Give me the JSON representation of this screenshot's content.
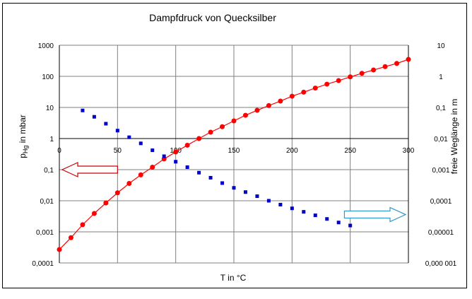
{
  "chart_data": {
    "type": "scatter",
    "title": "Dampfdruck von Quecksilber",
    "xlabel": "T in °C",
    "ylabel_left_sub": "Hg",
    "ylabel_left_prefix": "p",
    "ylabel_left_suffix": " in mbar",
    "ylabel_right": "freie Weglänge in m",
    "xlim": [
      0,
      300
    ],
    "ylim_left": [
      0.0001,
      1000
    ],
    "ylim_right": [
      1e-06,
      10
    ],
    "yscale": "log",
    "grid": true,
    "x_ticks": [
      "0",
      "50",
      "100",
      "150",
      "200",
      "250",
      "300"
    ],
    "y_left_ticks": [
      "0,0001",
      "0,001",
      "0,01",
      "0,1",
      "1",
      "10",
      "100",
      "1000"
    ],
    "y_right_ticks": [
      "0,000 001",
      "0,00001",
      "0,0001",
      "0,001",
      "0,01",
      "0,1",
      "1",
      "10"
    ],
    "series": [
      {
        "axis": "left",
        "color": "#ff0000",
        "marker": "circle",
        "line": true,
        "x": [
          0,
          10,
          20,
          30,
          40,
          50,
          60,
          70,
          80,
          90,
          100,
          110,
          120,
          130,
          140,
          150,
          160,
          170,
          180,
          190,
          200,
          210,
          220,
          230,
          240,
          250,
          260,
          270,
          280,
          290,
          300
        ],
        "y": [
          0.00027,
          0.00065,
          0.0017,
          0.0039,
          0.0085,
          0.018,
          0.036,
          0.068,
          0.12,
          0.22,
          0.37,
          0.61,
          1.0,
          1.6,
          2.4,
          3.7,
          5.6,
          8.1,
          11.5,
          16,
          23,
          31,
          42,
          56,
          73,
          96,
          125,
          160,
          205,
          260,
          350
        ]
      },
      {
        "axis": "right",
        "color": "#0000cc",
        "marker": "square",
        "line": false,
        "x": [
          20,
          30,
          40,
          50,
          60,
          70,
          80,
          90,
          100,
          110,
          120,
          130,
          140,
          150,
          160,
          170,
          180,
          190,
          200,
          210,
          220,
          230,
          240,
          250
        ],
        "y": [
          0.08,
          0.05,
          0.03,
          0.018,
          0.011,
          0.007,
          0.0042,
          0.0027,
          0.0018,
          0.0012,
          0.0008,
          0.00055,
          0.00037,
          0.00026,
          0.00019,
          0.00014,
          0.0001,
          7.5e-05,
          5.7e-05,
          4.4e-05,
          3.4e-05,
          2.6e-05,
          2e-05,
          1.6e-05
        ]
      }
    ],
    "annotations": [
      {
        "type": "arrow-left",
        "color": "#cc0000",
        "x_from": 50,
        "x_to": 0,
        "y_left": 0.1
      },
      {
        "type": "arrow-right",
        "color": "#3399cc",
        "x_from": 245,
        "x_to": 300,
        "y_left": 0.0036
      }
    ]
  }
}
